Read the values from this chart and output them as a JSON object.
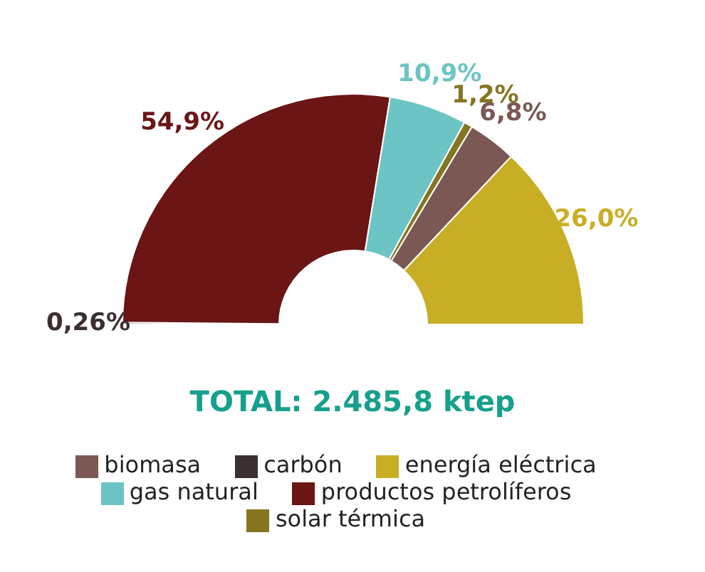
{
  "chart_data": {
    "type": "donut",
    "title": "TOTAL: 2.485,8 ktep",
    "categories": [
      "carbón",
      "productos petrolíferos",
      "gas natural",
      "solar térmica",
      "biomasa",
      "energía eléctrica"
    ],
    "values": [
      0.26,
      54.9,
      10.9,
      1.2,
      6.8,
      26.0
    ],
    "value_labels": [
      "0,26%",
      "54,9%",
      "10,9%",
      "1,2%",
      "6,8%",
      "26,0%"
    ],
    "colors": [
      "#3b2f2f",
      "#6b1515",
      "#6cc4c4",
      "#857521",
      "#7b5853",
      "#c8ae25"
    ],
    "legend": "bottom"
  }
}
